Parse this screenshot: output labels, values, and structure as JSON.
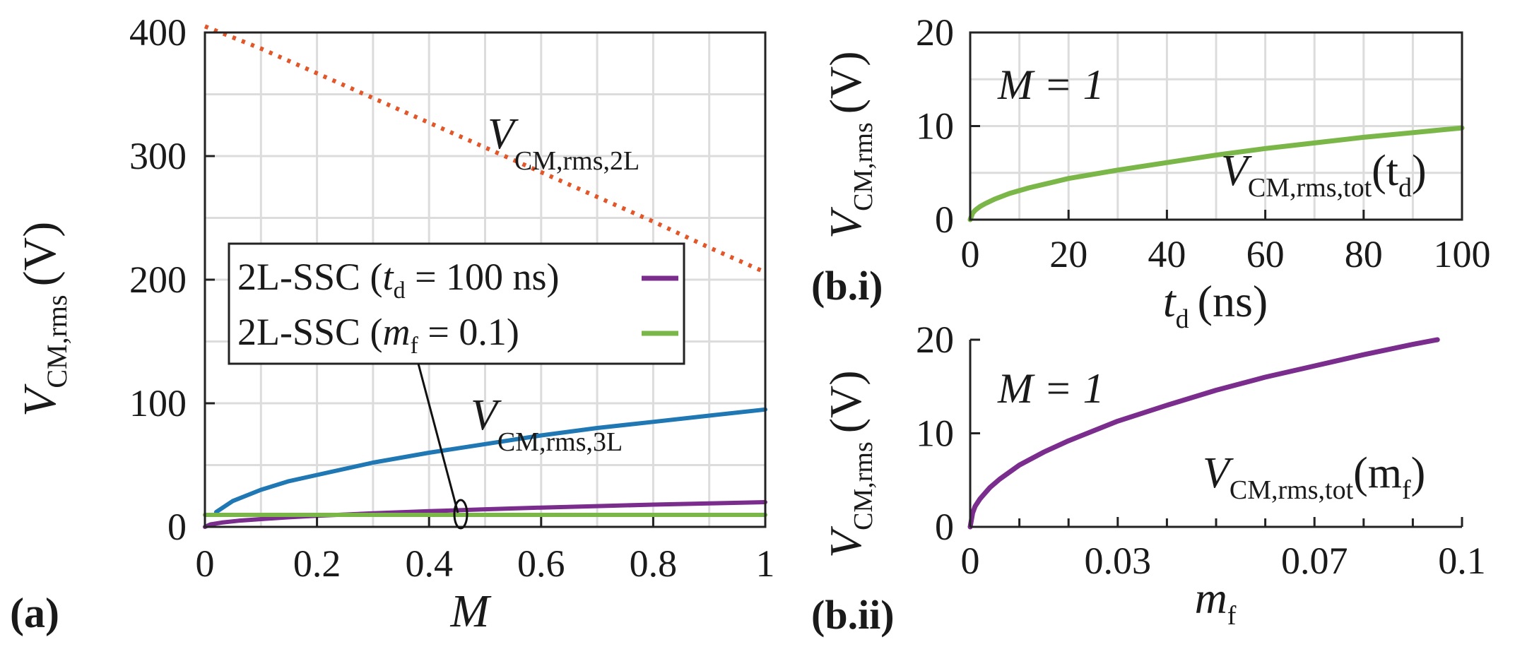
{
  "chart_data": [
    {
      "id": "a",
      "type": "line",
      "panel_label": "(a)",
      "xlabel": "M",
      "ylabel": {
        "base": "V",
        "sub": "CM,rms",
        "unit": "(V)"
      },
      "xlim": [
        0,
        1
      ],
      "ylim": [
        0,
        400
      ],
      "xticks": [
        0,
        0.2,
        0.4,
        0.6,
        0.8,
        1
      ],
      "xtick_labels": [
        "0",
        "0.2",
        "0.4",
        "0.6",
        "0.8",
        "1"
      ],
      "yticks": [
        0,
        100,
        200,
        300,
        400
      ],
      "ytick_labels": [
        "0",
        "100",
        "200",
        "300",
        "400"
      ],
      "grid": true,
      "series": [
        {
          "key": "2L",
          "color": "#e2572a",
          "dash": true,
          "x": [
            0,
            0.1,
            0.2,
            0.3,
            0.4,
            0.5,
            0.6,
            0.7,
            0.8,
            0.9,
            1
          ],
          "y": [
            405,
            387,
            367,
            347,
            327,
            307,
            287,
            267,
            247,
            226,
            206
          ]
        },
        {
          "key": "3L",
          "color": "#1f77b4",
          "x": [
            0.02,
            0.05,
            0.1,
            0.15,
            0.2,
            0.3,
            0.4,
            0.5,
            0.6,
            0.7,
            0.8,
            0.9,
            1
          ],
          "y": [
            12,
            21,
            30,
            37,
            42,
            52,
            60,
            67,
            74,
            80,
            85,
            90,
            95
          ]
        },
        {
          "name": "2L-SSC (t_d = 100 ns)",
          "color": "#7b2d8e",
          "x": [
            0,
            0.01,
            0.03,
            0.06,
            0.1,
            0.15,
            0.2,
            0.3,
            0.4,
            0.5,
            0.6,
            0.7,
            0.8,
            0.9,
            1
          ],
          "y": [
            0,
            2,
            3.5,
            5,
            6.3,
            7.8,
            9,
            11,
            12.7,
            14.2,
            15.6,
            16.8,
            18,
            19,
            20
          ]
        },
        {
          "name": "2L-SSC (m_f = 0.1)",
          "color": "#7ab648",
          "x": [
            0,
            1
          ],
          "y": [
            9.7,
            9.7
          ]
        }
      ],
      "annotations": [
        {
          "base": "V",
          "sub": "CM,rms,2L"
        },
        {
          "base": "V",
          "sub": "CM,rms,3L"
        }
      ],
      "legend": [
        {
          "prefix": "2L-SSC (",
          "var": "t",
          "var_sub": "d",
          "suffix": " = 100 ns)"
        },
        {
          "prefix": "2L-SSC (",
          "var": "m",
          "var_sub": "f",
          "suffix": " = 0.1)"
        }
      ]
    },
    {
      "id": "b.i",
      "type": "line",
      "panel_label": "(b.i)",
      "xlabel": {
        "base": "t",
        "sub": "d",
        "unit": "(ns)"
      },
      "ylabel": {
        "base": "V",
        "sub": "CM,rms",
        "unit": "(V)"
      },
      "xlim": [
        0,
        100
      ],
      "ylim": [
        0,
        20
      ],
      "xticks": [
        0,
        20,
        40,
        60,
        80,
        100
      ],
      "xtick_labels": [
        "0",
        "20",
        "40",
        "60",
        "80",
        "100"
      ],
      "yticks": [
        0,
        10,
        20
      ],
      "ytick_labels": [
        "0",
        "10",
        "20"
      ],
      "grid": true,
      "annotation_m": "M = 1",
      "curve_label": {
        "base": "V",
        "sub": "CM,rms,tot",
        "arg": "t",
        "arg_sub": "d"
      },
      "series": [
        {
          "color": "#7ab648",
          "x": [
            0,
            0.5,
            1,
            2,
            3,
            5,
            8,
            12,
            16,
            20,
            30,
            40,
            50,
            60,
            70,
            80,
            90,
            100
          ],
          "y": [
            0,
            0.7,
            1,
            1.4,
            1.7,
            2.2,
            2.8,
            3.4,
            3.9,
            4.4,
            5.3,
            6.1,
            6.9,
            7.6,
            8.2,
            8.8,
            9.3,
            9.8
          ]
        }
      ]
    },
    {
      "id": "b.ii",
      "type": "line",
      "panel_label": "(b.ii)",
      "xlabel": {
        "base": "m",
        "sub": "f"
      },
      "ylabel": {
        "base": "V",
        "sub": "CM,rms",
        "unit": "(V)"
      },
      "xlim": [
        0,
        0.1
      ],
      "ylim": [
        0,
        20
      ],
      "xticks": [
        0,
        0.03,
        0.07,
        0.1
      ],
      "xtick_labels": [
        "0",
        "0.03",
        "0.07",
        "0.1"
      ],
      "minor_xticks": [
        0.01,
        0.02,
        0.04,
        0.05,
        0.06,
        0.08,
        0.09
      ],
      "yticks": [
        0,
        10,
        20
      ],
      "ytick_labels": [
        "0",
        "10",
        "20"
      ],
      "grid": false,
      "annotation_m": "M = 1",
      "curve_label": {
        "base": "V",
        "sub": "CM,rms,tot",
        "arg": "m",
        "arg_sub": "f"
      },
      "series": [
        {
          "color": "#7b2d8e",
          "x": [
            0,
            0.0005,
            0.001,
            0.002,
            0.004,
            0.006,
            0.01,
            0.015,
            0.02,
            0.03,
            0.04,
            0.05,
            0.06,
            0.07,
            0.08,
            0.09,
            0.095
          ],
          "y": [
            0,
            1.5,
            2.2,
            3,
            4.2,
            5.1,
            6.6,
            8,
            9.2,
            11.3,
            13,
            14.6,
            16,
            17.2,
            18.4,
            19.5,
            20
          ]
        }
      ]
    }
  ]
}
